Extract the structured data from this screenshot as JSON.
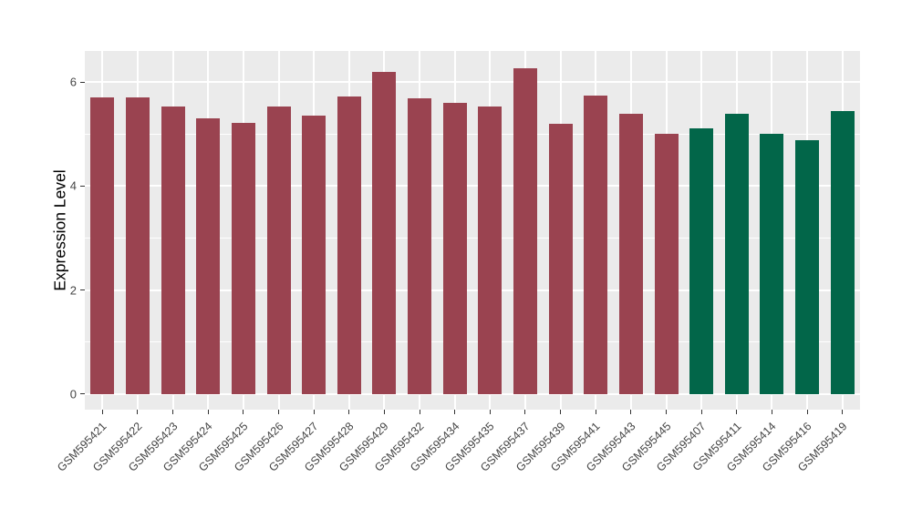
{
  "figure": {
    "background_color": "#FFFFFF",
    "panel_background_color": "#EBEBEB",
    "gridline_color": "#FFFFFF",
    "tick_mark_color": "#333333",
    "axis_text_color": "#454545",
    "axis_title_color": "#000000"
  },
  "chart_data": {
    "type": "bar",
    "title": "",
    "xlabel": "",
    "ylabel": "Expression Level",
    "ylim": [
      -0.3,
      6.6
    ],
    "yticks_major": [
      0,
      2,
      4,
      6
    ],
    "yticks_minor": [
      1,
      3,
      5
    ],
    "grid": "on",
    "legend_position": "none",
    "bar_width_fraction": 0.67,
    "colors": {
      "maroon": "#9A4350",
      "green": "#026649"
    },
    "bars": [
      {
        "label": "GSM595421",
        "value": 5.7,
        "color_key": "maroon"
      },
      {
        "label": "GSM595422",
        "value": 5.7,
        "color_key": "maroon"
      },
      {
        "label": "GSM595423",
        "value": 5.53,
        "color_key": "maroon"
      },
      {
        "label": "GSM595424",
        "value": 5.3,
        "color_key": "maroon"
      },
      {
        "label": "GSM595425",
        "value": 5.22,
        "color_key": "maroon"
      },
      {
        "label": "GSM595426",
        "value": 5.53,
        "color_key": "maroon"
      },
      {
        "label": "GSM595427",
        "value": 5.36,
        "color_key": "maroon"
      },
      {
        "label": "GSM595428",
        "value": 5.72,
        "color_key": "maroon"
      },
      {
        "label": "GSM595429",
        "value": 6.19,
        "color_key": "maroon"
      },
      {
        "label": "GSM595432",
        "value": 5.69,
        "color_key": "maroon"
      },
      {
        "label": "GSM595434",
        "value": 5.6,
        "color_key": "maroon"
      },
      {
        "label": "GSM595435",
        "value": 5.53,
        "color_key": "maroon"
      },
      {
        "label": "GSM595437",
        "value": 6.27,
        "color_key": "maroon"
      },
      {
        "label": "GSM595439",
        "value": 5.2,
        "color_key": "maroon"
      },
      {
        "label": "GSM595441",
        "value": 5.75,
        "color_key": "maroon"
      },
      {
        "label": "GSM595443",
        "value": 5.4,
        "color_key": "maroon"
      },
      {
        "label": "GSM595445",
        "value": 5.01,
        "color_key": "maroon"
      },
      {
        "label": "GSM595407",
        "value": 5.12,
        "color_key": "green"
      },
      {
        "label": "GSM595411",
        "value": 5.4,
        "color_key": "green"
      },
      {
        "label": "GSM595414",
        "value": 5.0,
        "color_key": "green"
      },
      {
        "label": "GSM595416",
        "value": 4.89,
        "color_key": "green"
      },
      {
        "label": "GSM595419",
        "value": 5.45,
        "color_key": "green"
      }
    ]
  }
}
